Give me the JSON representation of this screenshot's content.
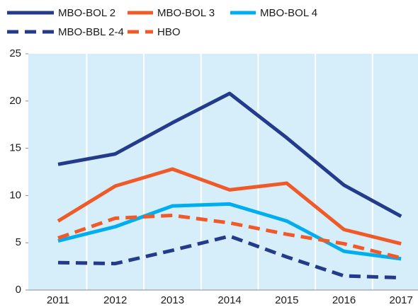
{
  "chart_data": {
    "type": "line",
    "categories": [
      "2011",
      "2012",
      "2013",
      "2014",
      "2015",
      "2016",
      "2017"
    ],
    "series": [
      {
        "name": "MBO-BOL 2",
        "color": "#243b8c",
        "dashed": false,
        "values": [
          13.3,
          14.4,
          17.7,
          20.8,
          16.1,
          11.1,
          7.8
        ]
      },
      {
        "name": "MBO-BOL 3",
        "color": "#f05a28",
        "dashed": false,
        "values": [
          7.3,
          11.0,
          12.8,
          10.6,
          11.3,
          6.4,
          4.9
        ]
      },
      {
        "name": "MBO-BOL 4",
        "color": "#00aeef",
        "dashed": false,
        "values": [
          5.2,
          6.7,
          8.9,
          9.1,
          7.3,
          4.1,
          3.3
        ]
      },
      {
        "name": "MBO-BBL 2-4",
        "color": "#243b8c",
        "dashed": true,
        "values": [
          2.9,
          2.8,
          4.2,
          5.7,
          3.5,
          1.5,
          1.3
        ]
      },
      {
        "name": "HBO",
        "color": "#f05a28",
        "dashed": true,
        "values": [
          5.5,
          7.6,
          7.9,
          7.1,
          5.9,
          4.9,
          3.4
        ]
      }
    ],
    "ylim": [
      0,
      25
    ],
    "yticks": [
      0,
      5,
      10,
      15,
      20,
      25
    ],
    "grid": true
  }
}
